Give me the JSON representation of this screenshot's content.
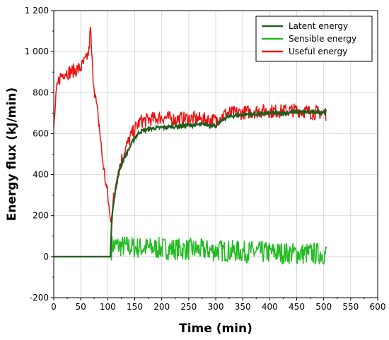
{
  "chart_data": {
    "type": "line",
    "xlabel": "Time (min)",
    "ylabel": "Energy flux (kJ/min)",
    "xlim": [
      0,
      600
    ],
    "ylim": [
      -200,
      1200
    ],
    "x_ticks": [
      0,
      50,
      100,
      150,
      200,
      250,
      300,
      350,
      400,
      450,
      500,
      550,
      600
    ],
    "x_tick_labels": [
      "0",
      "50",
      "100",
      "150",
      "200",
      "250",
      "300",
      "350",
      "400",
      "450",
      "500",
      "550",
      "600"
    ],
    "y_ticks": [
      -200,
      0,
      200,
      400,
      600,
      800,
      1000,
      1200
    ],
    "y_tick_labels": [
      "-200",
      "0",
      "200",
      "400",
      "600",
      "800",
      "1 000",
      "1 200"
    ],
    "grid": true,
    "legend_position": "top-right",
    "series": [
      {
        "name": "Latent energy",
        "color": "#1e5f1e",
        "x": [
          0,
          105,
          107,
          110,
          115,
          120,
          130,
          140,
          150,
          160,
          180,
          200,
          225,
          250,
          275,
          300,
          320,
          340,
          360,
          380,
          400,
          425,
          450,
          475,
          505
        ],
        "y": [
          0,
          0,
          150,
          250,
          340,
          410,
          480,
          530,
          580,
          610,
          625,
          630,
          635,
          640,
          645,
          640,
          680,
          690,
          695,
          695,
          700,
          700,
          705,
          705,
          705
        ]
      },
      {
        "name": "Sensible energy",
        "color": "#22bb22",
        "x": [
          0,
          105,
          108,
          150,
          200,
          250,
          300,
          350,
          400,
          450,
          505
        ],
        "y": [
          0,
          0,
          55,
          45,
          40,
          35,
          30,
          25,
          20,
          15,
          15
        ]
      },
      {
        "name": "Useful energy",
        "color": "#ee1111",
        "x": [
          0,
          5,
          10,
          20,
          30,
          40,
          50,
          60,
          65,
          68,
          72,
          78,
          85,
          90,
          95,
          100,
          105,
          108,
          112,
          118,
          125,
          135,
          145,
          160,
          180,
          200,
          225,
          250,
          275,
          300,
          320,
          340,
          360,
          380,
          400,
          425,
          450,
          475,
          505
        ],
        "y": [
          630,
          800,
          870,
          900,
          900,
          910,
          920,
          960,
          1000,
          1110,
          900,
          760,
          620,
          480,
          380,
          300,
          170,
          230,
          300,
          390,
          470,
          540,
          600,
          660,
          670,
          680,
          670,
          675,
          670,
          665,
          700,
          700,
          705,
          710,
          710,
          710,
          715,
          705,
          700
        ]
      }
    ]
  }
}
